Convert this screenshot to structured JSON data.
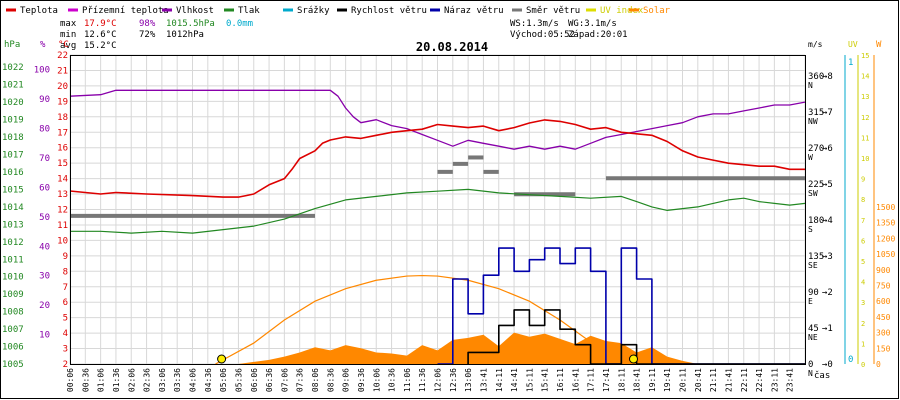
{
  "chart_data": {
    "type": "line",
    "title": "20.08.2014",
    "legend": [
      {
        "label": "Teplota",
        "color": "#dd0000"
      },
      {
        "label": "Přízemní teplota",
        "color": "#cc00cc"
      },
      {
        "label": "Vlhkost",
        "color": "#8800aa"
      },
      {
        "label": "Tlak",
        "color": "#228822"
      },
      {
        "label": "Srážky",
        "color": "#00aacc"
      },
      {
        "label": "Rychlost větru",
        "color": "#000000"
      },
      {
        "label": "Náraz větru",
        "color": "#0000aa"
      },
      {
        "label": "Směr větru",
        "color": "#777777"
      },
      {
        "label": "UV index",
        "color": "#dddd00"
      },
      {
        "label": "Solar",
        "color": "#ff8800"
      }
    ],
    "stats": {
      "max": {
        "label": "max",
        "temp": "17.9°C",
        "hum": "98%",
        "press": "1015.5hPa",
        "rain": "0.0mm"
      },
      "min": {
        "label": "min",
        "temp": "12.6°C",
        "hum": "72%",
        "press": "1012hPa"
      },
      "avg": {
        "label": "avg",
        "temp": "15.2°C"
      }
    },
    "wind_info": {
      "ws": "WS:1.3m/s",
      "wg": "WG:3.1m/s"
    },
    "sun_info": {
      "rise": "Východ:05:52",
      "set": "Západ:20:01"
    },
    "axes": {
      "hpa": {
        "unit": "hPa",
        "ticks": [
          "1005",
          "1006",
          "1007",
          "1008",
          "1009",
          "1010",
          "1011",
          "1012",
          "1013",
          "1014",
          "1015",
          "1016",
          "1017",
          "1018",
          "1019",
          "1020",
          "1021",
          "1022"
        ]
      },
      "pct": {
        "unit": "%",
        "ticks": [
          "10",
          "20",
          "30",
          "40",
          "50",
          "60",
          "70",
          "80",
          "90",
          "100"
        ]
      },
      "temp": {
        "unit": "°C",
        "ticks": [
          "2",
          "3",
          "4",
          "5",
          "6",
          "7",
          "8",
          "9",
          "10",
          "11",
          "12",
          "13",
          "14",
          "15",
          "16",
          "17",
          "18",
          "19",
          "20",
          "21",
          "22"
        ]
      },
      "dir": {
        "ticks": [
          {
            "deg": "0",
            "sp": "0",
            "lbl": "N"
          },
          {
            "deg": "45",
            "sp": "1",
            "lbl": "NE"
          },
          {
            "deg": "90",
            "sp": "2",
            "lbl": "E"
          },
          {
            "deg": "135",
            "sp": "3",
            "lbl": "SE"
          },
          {
            "deg": "180",
            "sp": "4",
            "lbl": "S"
          },
          {
            "deg": "225",
            "sp": "5",
            "lbl": "SW"
          },
          {
            "deg": "270",
            "sp": "6",
            "lbl": "W"
          },
          {
            "deg": "315",
            "sp": "7",
            "lbl": "NW"
          },
          {
            "deg": "360",
            "sp": "8",
            "lbl": "N"
          }
        ]
      },
      "ms": {
        "unit": "m/s",
        "ticks": [
          "0",
          "1"
        ]
      },
      "uv": {
        "unit": "UV",
        "ticks": [
          "0",
          "1",
          "2",
          "3",
          "4",
          "5",
          "6",
          "7",
          "8",
          "9",
          "10",
          "11",
          "12",
          "13",
          "14",
          "15"
        ]
      },
      "w": {
        "unit": "W",
        "ticks": [
          "0",
          "150",
          "300",
          "450",
          "600",
          "750",
          "900",
          "1050",
          "1200",
          "1350",
          "1500"
        ]
      },
      "x": {
        "label": "čas",
        "ticks": [
          "00:06",
          "00:36",
          "01:06",
          "01:36",
          "02:06",
          "02:36",
          "03:06",
          "03:36",
          "04:06",
          "04:36",
          "05:06",
          "05:36",
          "06:06",
          "06:36",
          "07:06",
          "07:36",
          "08:06",
          "08:36",
          "09:06",
          "09:36",
          "10:06",
          "10:36",
          "11:06",
          "11:36",
          "12:06",
          "12:36",
          "13:06",
          "13:41",
          "14:11",
          "14:41",
          "15:11",
          "15:41",
          "16:11",
          "16:41",
          "17:11",
          "17:41",
          "18:11",
          "18:41",
          "19:11",
          "19:41",
          "20:11",
          "20:41",
          "21:11",
          "21:41",
          "22:11",
          "22:41",
          "23:11",
          "23:41"
        ]
      }
    },
    "series": {
      "temperature": {
        "name": "Teplota",
        "points": [
          [
            0,
            13.2
          ],
          [
            2,
            13.0
          ],
          [
            3,
            13.1
          ],
          [
            5,
            13.0
          ],
          [
            8,
            12.9
          ],
          [
            10,
            12.8
          ],
          [
            11,
            12.8
          ],
          [
            11.5,
            12.9
          ],
          [
            12,
            13.0
          ],
          [
            13,
            13.6
          ],
          [
            14,
            14.0
          ],
          [
            14.5,
            14.6
          ],
          [
            15,
            15.3
          ],
          [
            16,
            15.8
          ],
          [
            16.5,
            16.3
          ],
          [
            17,
            16.5
          ],
          [
            18,
            16.7
          ],
          [
            19,
            16.6
          ],
          [
            20,
            16.8
          ],
          [
            21,
            17.0
          ],
          [
            22,
            17.1
          ],
          [
            23,
            17.2
          ],
          [
            24,
            17.5
          ],
          [
            25,
            17.4
          ],
          [
            26,
            17.3
          ],
          [
            27,
            17.4
          ],
          [
            28,
            17.1
          ],
          [
            29,
            17.3
          ],
          [
            30,
            17.6
          ],
          [
            31,
            17.8
          ],
          [
            32,
            17.7
          ],
          [
            33,
            17.5
          ],
          [
            34,
            17.2
          ],
          [
            35,
            17.3
          ],
          [
            36,
            17.0
          ],
          [
            37,
            16.9
          ],
          [
            38,
            16.8
          ],
          [
            39,
            16.4
          ],
          [
            40,
            15.8
          ],
          [
            41,
            15.4
          ],
          [
            42,
            15.2
          ],
          [
            43,
            15.0
          ],
          [
            44,
            14.9
          ],
          [
            45,
            14.8
          ],
          [
            46,
            14.8
          ],
          [
            47,
            14.6
          ],
          [
            48,
            14.6
          ]
        ]
      },
      "humidity": {
        "name": "Vlhkost",
        "points": [
          [
            0,
            91
          ],
          [
            2,
            91.5
          ],
          [
            3,
            93
          ],
          [
            6,
            93
          ],
          [
            10,
            93
          ],
          [
            14,
            93
          ],
          [
            17,
            93
          ],
          [
            17.5,
            91
          ],
          [
            18,
            87
          ],
          [
            18.5,
            84
          ],
          [
            19,
            82
          ],
          [
            20,
            83
          ],
          [
            21,
            81
          ],
          [
            22,
            80
          ],
          [
            23,
            78
          ],
          [
            24,
            76
          ],
          [
            25,
            74
          ],
          [
            26,
            76
          ],
          [
            27,
            75
          ],
          [
            28,
            74
          ],
          [
            29,
            73
          ],
          [
            30,
            74
          ],
          [
            31,
            73
          ],
          [
            32,
            74
          ],
          [
            33,
            73
          ],
          [
            34,
            75
          ],
          [
            35,
            77
          ],
          [
            36,
            78
          ],
          [
            37,
            79
          ],
          [
            38,
            80
          ],
          [
            39,
            81
          ],
          [
            40,
            82
          ],
          [
            41,
            84
          ],
          [
            42,
            85
          ],
          [
            43,
            85
          ],
          [
            44,
            86
          ],
          [
            45,
            87
          ],
          [
            46,
            88
          ],
          [
            47,
            88
          ],
          [
            48,
            89
          ]
        ]
      },
      "pressure": {
        "name": "Tlak",
        "points": [
          [
            0,
            1012.6
          ],
          [
            2,
            1012.6
          ],
          [
            4,
            1012.5
          ],
          [
            6,
            1012.6
          ],
          [
            8,
            1012.5
          ],
          [
            10,
            1012.7
          ],
          [
            12,
            1012.9
          ],
          [
            14,
            1013.3
          ],
          [
            16,
            1013.9
          ],
          [
            18,
            1014.4
          ],
          [
            20,
            1014.6
          ],
          [
            22,
            1014.8
          ],
          [
            24,
            1014.9
          ],
          [
            26,
            1015.0
          ],
          [
            28,
            1014.8
          ],
          [
            30,
            1014.7
          ],
          [
            32,
            1014.6
          ],
          [
            34,
            1014.5
          ],
          [
            36,
            1014.6
          ],
          [
            37,
            1014.3
          ],
          [
            38,
            1014.0
          ],
          [
            39,
            1013.8
          ],
          [
            40,
            1013.9
          ],
          [
            41,
            1014.0
          ],
          [
            42,
            1014.2
          ],
          [
            43,
            1014.4
          ],
          [
            44,
            1014.5
          ],
          [
            45,
            1014.3
          ],
          [
            46,
            1014.2
          ],
          [
            47,
            1014.1
          ],
          [
            48,
            1014.2
          ]
        ]
      },
      "wind_speed": {
        "name": "Rychlost větru",
        "points": [
          [
            26,
            0
          ],
          [
            26,
            0.3
          ],
          [
            28,
            0.3
          ],
          [
            28,
            1
          ],
          [
            29,
            1
          ],
          [
            29,
            1.4
          ],
          [
            30,
            1.4
          ],
          [
            30,
            1
          ],
          [
            31,
            1
          ],
          [
            31,
            1.4
          ],
          [
            32,
            1.4
          ],
          [
            32,
            0.9
          ],
          [
            33,
            0.9
          ],
          [
            33,
            0.5
          ],
          [
            34,
            0.5
          ],
          [
            34,
            0
          ],
          [
            36,
            0
          ],
          [
            36,
            0.5
          ],
          [
            37,
            0.5
          ],
          [
            37,
            0
          ],
          [
            48,
            0
          ]
        ]
      },
      "wind_gust": {
        "name": "Náraz větru",
        "points": [
          [
            24,
            0
          ],
          [
            25,
            0
          ],
          [
            25,
            2.2
          ],
          [
            26,
            2.2
          ],
          [
            26,
            1.3
          ],
          [
            27,
            1.3
          ],
          [
            27,
            2.3
          ],
          [
            28,
            2.3
          ],
          [
            28,
            3
          ],
          [
            29,
            3
          ],
          [
            29,
            2.4
          ],
          [
            30,
            2.4
          ],
          [
            30,
            2.7
          ],
          [
            31,
            2.7
          ],
          [
            31,
            3
          ],
          [
            32,
            3
          ],
          [
            32,
            2.6
          ],
          [
            33,
            2.6
          ],
          [
            33,
            3
          ],
          [
            34,
            3
          ],
          [
            34,
            2.4
          ],
          [
            35,
            2.4
          ],
          [
            35,
            0
          ],
          [
            36,
            0
          ],
          [
            36,
            3
          ],
          [
            37,
            3
          ],
          [
            37,
            2.2
          ],
          [
            38,
            2.2
          ],
          [
            38,
            0
          ],
          [
            48,
            0
          ]
        ]
      },
      "wind_dir": {
        "name": "Směr větru",
        "segments": [
          [
            0,
            16,
            185
          ],
          [
            24,
            25,
            240
          ],
          [
            25,
            26,
            250
          ],
          [
            26,
            27,
            258
          ],
          [
            27,
            28,
            240
          ],
          [
            29,
            33,
            212
          ],
          [
            35,
            48,
            232
          ]
        ]
      },
      "solar": {
        "name": "Solar",
        "points": [
          [
            0,
            0
          ],
          [
            10,
            0
          ],
          [
            11,
            0
          ],
          [
            12,
            20
          ],
          [
            13,
            40
          ],
          [
            14,
            70
          ],
          [
            15,
            110
          ],
          [
            16,
            160
          ],
          [
            17,
            130
          ],
          [
            18,
            180
          ],
          [
            19,
            150
          ],
          [
            20,
            110
          ],
          [
            21,
            100
          ],
          [
            22,
            80
          ],
          [
            23,
            180
          ],
          [
            24,
            130
          ],
          [
            25,
            230
          ],
          [
            26,
            250
          ],
          [
            27,
            280
          ],
          [
            28,
            170
          ],
          [
            29,
            300
          ],
          [
            30,
            260
          ],
          [
            31,
            290
          ],
          [
            32,
            240
          ],
          [
            33,
            190
          ],
          [
            34,
            270
          ],
          [
            35,
            220
          ],
          [
            36,
            200
          ],
          [
            37,
            110
          ],
          [
            38,
            160
          ],
          [
            39,
            70
          ],
          [
            40,
            30
          ],
          [
            41,
            0
          ],
          [
            48,
            0
          ]
        ]
      },
      "solar_theoretical": {
        "name": "Solar",
        "points": [
          [
            9.5,
            0
          ],
          [
            12,
            200
          ],
          [
            14,
            420
          ],
          [
            16,
            600
          ],
          [
            18,
            720
          ],
          [
            20,
            800
          ],
          [
            22,
            840
          ],
          [
            23,
            845
          ],
          [
            24,
            840
          ],
          [
            26,
            800
          ],
          [
            28,
            720
          ],
          [
            30,
            600
          ],
          [
            32,
            420
          ],
          [
            34,
            210
          ],
          [
            36,
            30
          ],
          [
            36.8,
            0
          ]
        ]
      }
    },
    "markers": [
      9.9,
      36.8
    ]
  }
}
